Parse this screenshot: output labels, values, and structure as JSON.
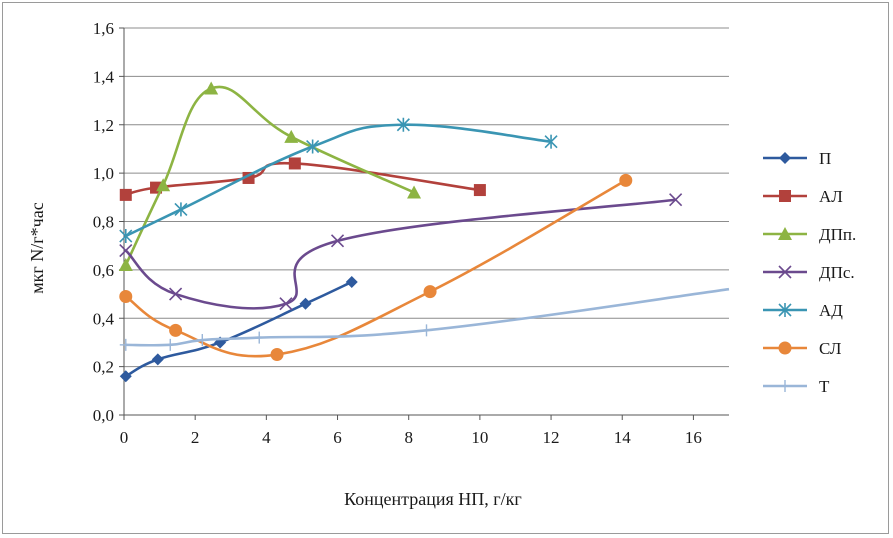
{
  "chart_data": {
    "type": "scatter",
    "xlabel": "Концентрация НП, г/кг",
    "ylabel": "мкг N/г*час",
    "xlim": [
      0,
      17
    ],
    "ylim": [
      0,
      1.6
    ],
    "xticks": [
      "0",
      "2",
      "4",
      "6",
      "8",
      "10",
      "12",
      "14",
      "16"
    ],
    "yticks": [
      "0,0",
      "0,2",
      "0,4",
      "0,6",
      "0,8",
      "1,0",
      "1,2",
      "1,4",
      "1,6"
    ],
    "grid": "horizontal",
    "legend_position": "right",
    "lines": "smoothed",
    "series": [
      {
        "name": "П",
        "color": "#2E5A9E",
        "marker": "diamond",
        "points": [
          [
            0.05,
            0.16
          ],
          [
            0.95,
            0.23
          ],
          [
            2.7,
            0.3
          ],
          [
            5.1,
            0.46
          ],
          [
            6.4,
            0.55
          ]
        ]
      },
      {
        "name": "АЛ",
        "color": "#B2413C",
        "marker": "square",
        "points": [
          [
            0.05,
            0.91
          ],
          [
            0.9,
            0.94
          ],
          [
            3.5,
            0.98
          ],
          [
            4.8,
            1.04
          ],
          [
            10.0,
            0.93
          ]
        ]
      },
      {
        "name": "ДПп.",
        "color": "#8DB443",
        "marker": "triangle",
        "points": [
          [
            0.05,
            0.62
          ],
          [
            1.1,
            0.95
          ],
          [
            2.45,
            1.35
          ],
          [
            4.7,
            1.15
          ],
          [
            8.15,
            0.92
          ]
        ]
      },
      {
        "name": "ДПс.",
        "color": "#6B4A8E",
        "marker": "x",
        "points": [
          [
            0.05,
            0.68
          ],
          [
            1.45,
            0.5
          ],
          [
            4.55,
            0.46
          ],
          [
            6.0,
            0.72
          ],
          [
            15.5,
            0.89
          ]
        ]
      },
      {
        "name": "АД",
        "color": "#3A95B3",
        "marker": "asterisk",
        "points": [
          [
            0.05,
            0.74
          ],
          [
            1.6,
            0.85
          ],
          [
            5.3,
            1.11
          ],
          [
            7.85,
            1.2
          ],
          [
            12.0,
            1.13
          ]
        ]
      },
      {
        "name": "СЛ",
        "color": "#E8873A",
        "marker": "circle",
        "points": [
          [
            0.05,
            0.49
          ],
          [
            1.45,
            0.35
          ],
          [
            4.3,
            0.25
          ],
          [
            8.6,
            0.51
          ],
          [
            14.1,
            0.97
          ]
        ]
      },
      {
        "name": "Т",
        "color": "#9AB6D8",
        "marker": "plus",
        "points": [
          [
            0.05,
            0.29
          ],
          [
            1.3,
            0.29
          ],
          [
            2.2,
            0.31
          ],
          [
            3.8,
            0.32
          ],
          [
            8.5,
            0.35
          ],
          [
            17.0,
            0.52
          ]
        ]
      }
    ]
  }
}
